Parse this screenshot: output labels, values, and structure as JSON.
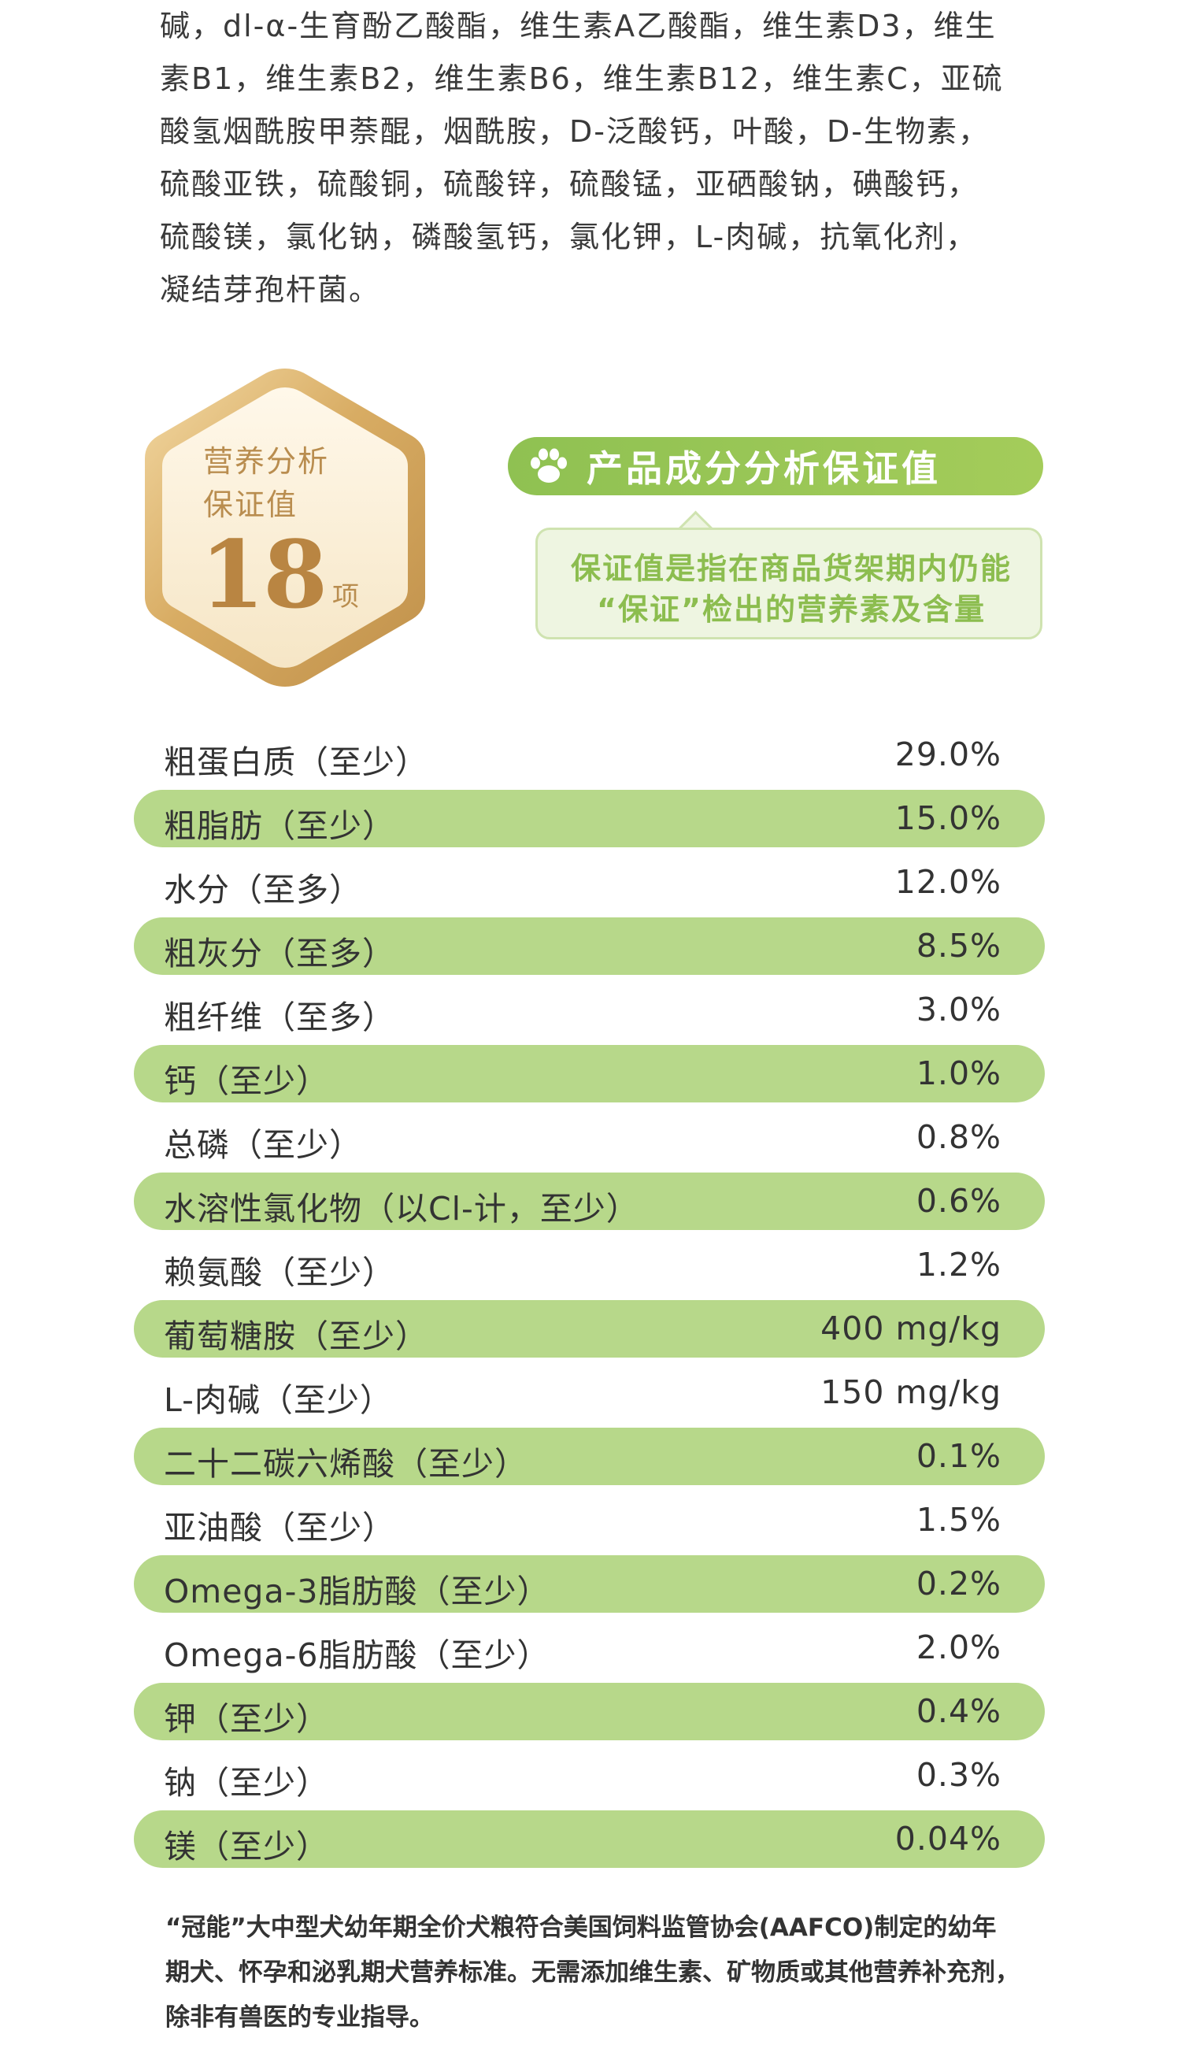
{
  "ingredients_lines": [
    "碱，dl-α-生育酚乙酸酯，维生素A乙酸酯，维生素D3，维生",
    "素B1，维生素B2，维生素B6，维生素B12，维生素C，亚硫",
    "酸氢烟酰胺甲萘醌，烟酰胺，D-泛酸钙，叶酸，D-生物素，",
    "硫酸亚铁，硫酸铜，硫酸锌，硫酸锰，亚硒酸钠，碘酸钙，",
    "硫酸镁，氯化钠，磷酸氢钙，氯化钾，L-肉碱，抗氧化剂，",
    "凝结芽孢杆菌。"
  ],
  "badge": {
    "line1": "营养分析",
    "line2": "保证值",
    "number": "18",
    "unit": "项"
  },
  "section_title": "产品成分分析保证值",
  "section_icon": "paw-icon",
  "bubble": {
    "line1": "保证值是指在商品货架期内仍能",
    "line2": "“保证”检出的营养素及含量"
  },
  "nutrients": [
    {
      "name": "粗蛋白质（至少）",
      "value": "29.0%"
    },
    {
      "name": "粗脂肪（至少）",
      "value": "15.0%"
    },
    {
      "name": "水分（至多）",
      "value": "12.0%"
    },
    {
      "name": "粗灰分（至多）",
      "value": "8.5%"
    },
    {
      "name": "粗纤维（至多）",
      "value": "3.0%"
    },
    {
      "name": "钙（至少）",
      "value": "1.0%"
    },
    {
      "name": "总磷（至少）",
      "value": "0.8%"
    },
    {
      "name": "水溶性氯化物（以Cl-计，至少）",
      "value": "0.6%"
    },
    {
      "name": "赖氨酸（至少）",
      "value": "1.2%"
    },
    {
      "name": "葡萄糖胺（至少）",
      "value": "400 mg/kg"
    },
    {
      "name": "L-肉碱（至少）",
      "value": "150 mg/kg"
    },
    {
      "name": "二十二碳六烯酸（至少）",
      "value": "0.1%"
    },
    {
      "name": "亚油酸（至少）",
      "value": "1.5%"
    },
    {
      "name": "Omega-3脂肪酸（至少）",
      "value": "0.2%"
    },
    {
      "name": "Omega-6脂肪酸（至少）",
      "value": "2.0%"
    },
    {
      "name": "钾（至少）",
      "value": "0.4%"
    },
    {
      "name": "钠（至少）",
      "value": "0.3%"
    },
    {
      "name": "镁（至少）",
      "value": "0.04%"
    }
  ],
  "footer_lines": [
    "“冠能”大中型犬幼年期全价犬粮符合美国饲料监管协会(AAFCO)制定的幼年",
    "期犬、怀孕和泌乳期犬营养标准。无需添加维生素、矿物质或其他营养补充剂，",
    "除非有兽医的专业指导。"
  ],
  "colors": {
    "accent_green": "#9ccb57",
    "row_green": "#b7d88a",
    "gold": "#b98542"
  }
}
